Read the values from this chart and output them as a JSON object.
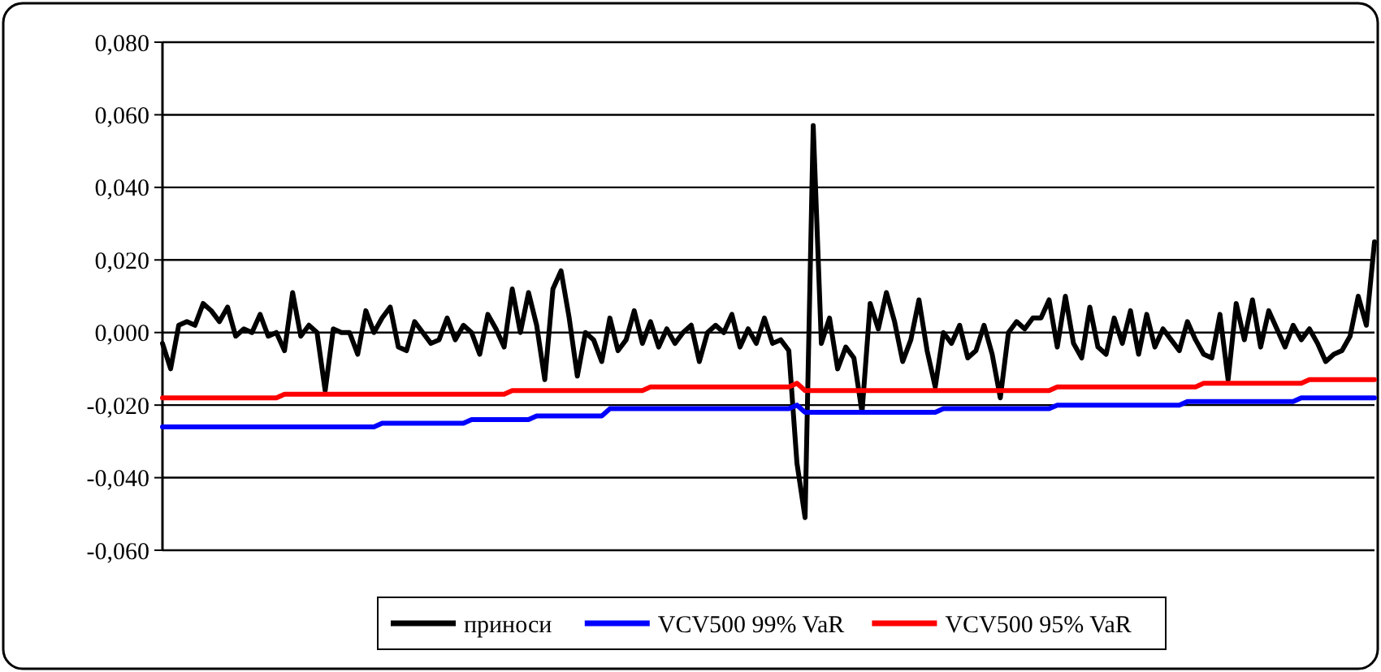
{
  "chart_data": {
    "type": "line",
    "categories": [
      null,
      null,
      null,
      null,
      null,
      null,
      null,
      null,
      null,
      null,
      null,
      null,
      null,
      null,
      null,
      null,
      null,
      null,
      null,
      null,
      null,
      null,
      null,
      null,
      null,
      null,
      null,
      null,
      null,
      null,
      null,
      null,
      null,
      null,
      null,
      null,
      null,
      null,
      null,
      null,
      null,
      null,
      null,
      null,
      null,
      null,
      null,
      null,
      null,
      null,
      null,
      null,
      null,
      null,
      null,
      null,
      null,
      null,
      null,
      null,
      null,
      null,
      null,
      null,
      null,
      null,
      null,
      null,
      null,
      null,
      null,
      null,
      null,
      null,
      null,
      null,
      null,
      null,
      null,
      null,
      null,
      null,
      null,
      null,
      null,
      null,
      null,
      null,
      null,
      null,
      null,
      null,
      null,
      null,
      null,
      null,
      null,
      null,
      null,
      null,
      null,
      null,
      null,
      null,
      null,
      null,
      null,
      null,
      null,
      null,
      null,
      null,
      null,
      null,
      null,
      null,
      null,
      null,
      null,
      null,
      null,
      null,
      null,
      null,
      null,
      null,
      null,
      null,
      null,
      null,
      null,
      null,
      null,
      null,
      null,
      null,
      null,
      null,
      null,
      null,
      null,
      null,
      null,
      null,
      null,
      null,
      null,
      null,
      null,
      null
    ],
    "series": [
      {
        "name": "приноси",
        "color": "#000000",
        "values": [
          -0.003,
          -0.01,
          0.002,
          0.003,
          0.002,
          0.008,
          0.006,
          0.003,
          0.007,
          -0.001,
          0.001,
          0.0,
          0.005,
          -0.001,
          0.0,
          -0.005,
          0.011,
          -0.001,
          0.002,
          0.0,
          -0.016,
          0.001,
          0.0,
          0.0,
          -0.006,
          0.006,
          0.0,
          0.004,
          0.007,
          -0.004,
          -0.005,
          0.003,
          0.0,
          -0.003,
          -0.002,
          0.004,
          -0.002,
          0.002,
          0.0,
          -0.006,
          0.005,
          0.001,
          -0.004,
          0.012,
          0.0,
          0.011,
          0.002,
          -0.013,
          0.012,
          0.017,
          0.004,
          -0.012,
          0.0,
          -0.002,
          -0.008,
          0.004,
          -0.005,
          -0.002,
          0.006,
          -0.003,
          0.003,
          -0.004,
          0.001,
          -0.003,
          0.0,
          0.002,
          -0.008,
          0.0,
          0.002,
          0.0,
          0.005,
          -0.004,
          0.001,
          -0.003,
          0.004,
          -0.003,
          -0.002,
          -0.005,
          -0.036,
          -0.051,
          0.057,
          -0.003,
          0.004,
          -0.01,
          -0.004,
          -0.007,
          -0.022,
          0.008,
          0.001,
          0.011,
          0.003,
          -0.008,
          -0.002,
          0.009,
          -0.005,
          -0.015,
          0.0,
          -0.003,
          0.002,
          -0.007,
          -0.005,
          0.002,
          -0.006,
          -0.018,
          0.0,
          0.003,
          0.001,
          0.004,
          0.004,
          0.009,
          -0.004,
          0.01,
          -0.003,
          -0.007,
          0.007,
          -0.004,
          -0.006,
          0.004,
          -0.003,
          0.006,
          -0.006,
          0.005,
          -0.004,
          0.001,
          -0.002,
          -0.005,
          0.003,
          -0.002,
          -0.006,
          -0.007,
          0.005,
          -0.013,
          0.008,
          -0.002,
          0.009,
          -0.004,
          0.006,
          0.001,
          -0.004,
          0.002,
          -0.002,
          0.001,
          -0.003,
          -0.008,
          -0.006,
          -0.005,
          -0.001,
          0.01,
          0.002,
          0.025
        ]
      },
      {
        "name": "VCV500 99% VaR",
        "color": "#0000ff",
        "values": [
          -0.026,
          -0.026,
          -0.026,
          -0.026,
          -0.026,
          -0.026,
          -0.026,
          -0.026,
          -0.026,
          -0.026,
          -0.026,
          -0.026,
          -0.026,
          -0.026,
          -0.026,
          -0.026,
          -0.026,
          -0.026,
          -0.026,
          -0.026,
          -0.026,
          -0.026,
          -0.026,
          -0.026,
          -0.026,
          -0.026,
          -0.026,
          -0.025,
          -0.025,
          -0.025,
          -0.025,
          -0.025,
          -0.025,
          -0.025,
          -0.025,
          -0.025,
          -0.025,
          -0.025,
          -0.024,
          -0.024,
          -0.024,
          -0.024,
          -0.024,
          -0.024,
          -0.024,
          -0.024,
          -0.023,
          -0.023,
          -0.023,
          -0.023,
          -0.023,
          -0.023,
          -0.023,
          -0.023,
          -0.023,
          -0.021,
          -0.021,
          -0.021,
          -0.021,
          -0.021,
          -0.021,
          -0.021,
          -0.021,
          -0.021,
          -0.021,
          -0.021,
          -0.021,
          -0.021,
          -0.021,
          -0.021,
          -0.021,
          -0.021,
          -0.021,
          -0.021,
          -0.021,
          -0.021,
          -0.021,
          -0.021,
          -0.02,
          -0.022,
          -0.022,
          -0.022,
          -0.022,
          -0.022,
          -0.022,
          -0.022,
          -0.022,
          -0.022,
          -0.022,
          -0.022,
          -0.022,
          -0.022,
          -0.022,
          -0.022,
          -0.022,
          -0.022,
          -0.021,
          -0.021,
          -0.021,
          -0.021,
          -0.021,
          -0.021,
          -0.021,
          -0.021,
          -0.021,
          -0.021,
          -0.021,
          -0.021,
          -0.021,
          -0.021,
          -0.02,
          -0.02,
          -0.02,
          -0.02,
          -0.02,
          -0.02,
          -0.02,
          -0.02,
          -0.02,
          -0.02,
          -0.02,
          -0.02,
          -0.02,
          -0.02,
          -0.02,
          -0.02,
          -0.019,
          -0.019,
          -0.019,
          -0.019,
          -0.019,
          -0.019,
          -0.019,
          -0.019,
          -0.019,
          -0.019,
          -0.019,
          -0.019,
          -0.019,
          -0.019,
          -0.018,
          -0.018,
          -0.018,
          -0.018,
          -0.018,
          -0.018,
          -0.018,
          -0.018,
          -0.018,
          -0.018
        ]
      },
      {
        "name": "VCV500 95% VaR",
        "color": "#ff0000",
        "values": [
          -0.018,
          -0.018,
          -0.018,
          -0.018,
          -0.018,
          -0.018,
          -0.018,
          -0.018,
          -0.018,
          -0.018,
          -0.018,
          -0.018,
          -0.018,
          -0.018,
          -0.018,
          -0.017,
          -0.017,
          -0.017,
          -0.017,
          -0.017,
          -0.017,
          -0.017,
          -0.017,
          -0.017,
          -0.017,
          -0.017,
          -0.017,
          -0.017,
          -0.017,
          -0.017,
          -0.017,
          -0.017,
          -0.017,
          -0.017,
          -0.017,
          -0.017,
          -0.017,
          -0.017,
          -0.017,
          -0.017,
          -0.017,
          -0.017,
          -0.017,
          -0.016,
          -0.016,
          -0.016,
          -0.016,
          -0.016,
          -0.016,
          -0.016,
          -0.016,
          -0.016,
          -0.016,
          -0.016,
          -0.016,
          -0.016,
          -0.016,
          -0.016,
          -0.016,
          -0.016,
          -0.015,
          -0.015,
          -0.015,
          -0.015,
          -0.015,
          -0.015,
          -0.015,
          -0.015,
          -0.015,
          -0.015,
          -0.015,
          -0.015,
          -0.015,
          -0.015,
          -0.015,
          -0.015,
          -0.015,
          -0.015,
          -0.014,
          -0.016,
          -0.016,
          -0.016,
          -0.016,
          -0.016,
          -0.016,
          -0.016,
          -0.016,
          -0.016,
          -0.016,
          -0.016,
          -0.016,
          -0.016,
          -0.016,
          -0.016,
          -0.016,
          -0.016,
          -0.016,
          -0.016,
          -0.016,
          -0.016,
          -0.016,
          -0.016,
          -0.016,
          -0.016,
          -0.016,
          -0.016,
          -0.016,
          -0.016,
          -0.016,
          -0.016,
          -0.015,
          -0.015,
          -0.015,
          -0.015,
          -0.015,
          -0.015,
          -0.015,
          -0.015,
          -0.015,
          -0.015,
          -0.015,
          -0.015,
          -0.015,
          -0.015,
          -0.015,
          -0.015,
          -0.015,
          -0.015,
          -0.014,
          -0.014,
          -0.014,
          -0.014,
          -0.014,
          -0.014,
          -0.014,
          -0.014,
          -0.014,
          -0.014,
          -0.014,
          -0.014,
          -0.014,
          -0.013,
          -0.013,
          -0.013,
          -0.013,
          -0.013,
          -0.013,
          -0.013,
          -0.013,
          -0.013
        ]
      }
    ],
    "ylim": [
      -0.06,
      0.08
    ],
    "yticks": [
      {
        "value": -0.06,
        "label": "-0,060"
      },
      {
        "value": -0.04,
        "label": "-0,040"
      },
      {
        "value": -0.02,
        "label": "-0,020"
      },
      {
        "value": 0,
        "label": "0,000"
      },
      {
        "value": 0.02,
        "label": "0,020"
      },
      {
        "value": 0.04,
        "label": "0,040"
      },
      {
        "value": 0.06,
        "label": "0,060"
      },
      {
        "value": 0.08,
        "label": "0,080"
      }
    ],
    "grid": "y",
    "legend": "bottom",
    "tick_labels": "y",
    "marker": "none",
    "line_style": "solid"
  }
}
